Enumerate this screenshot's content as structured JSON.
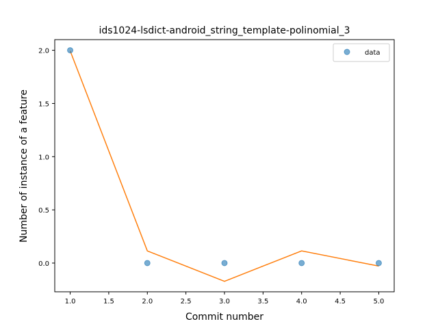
{
  "chart_data": {
    "type": "scatter",
    "title": "ids1024-lsdict-android_string_template-polinomial_3",
    "xlabel": "Commit number",
    "ylabel": "Number of instance of a feature",
    "xlim": [
      0.8,
      5.2
    ],
    "ylim": [
      -0.27,
      2.1
    ],
    "xticks": [
      "1.0",
      "1.5",
      "2.0",
      "2.5",
      "3.0",
      "3.5",
      "4.0",
      "4.5",
      "5.0"
    ],
    "yticks": [
      "0.0",
      "0.5",
      "1.0",
      "1.5",
      "2.0"
    ],
    "grid": false,
    "legend_position": "top-right",
    "series": [
      {
        "name": "data",
        "kind": "scatter",
        "color": "#1f77b4",
        "x": [
          1,
          2,
          3,
          4,
          5
        ],
        "y": [
          2.0,
          0.0,
          0.0,
          0.0,
          0.0
        ]
      },
      {
        "kind": "line",
        "color": "#ff7f0e",
        "x": [
          1,
          2,
          3,
          4,
          5
        ],
        "y": [
          1.9943,
          0.1143,
          -0.1714,
          0.1143,
          -0.0286
        ]
      }
    ]
  }
}
